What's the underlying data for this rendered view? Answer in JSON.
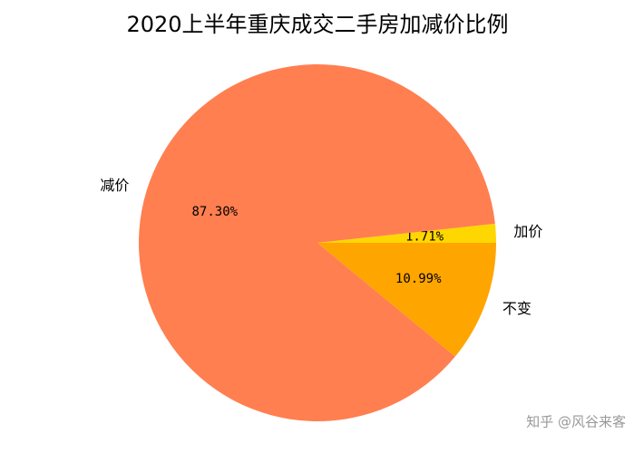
{
  "chart_data": {
    "type": "pie",
    "title": "2020上半年重庆成交二手房加减价比例",
    "categories": [
      "加价",
      "减价",
      "不变"
    ],
    "values": [
      1.71,
      87.3,
      10.99
    ],
    "value_labels": [
      "1.71%",
      "87.30%",
      "10.99%"
    ],
    "colors": [
      "#ffd700",
      "#ff7f50",
      "#ffa500"
    ],
    "watermark": "知乎 @风谷来客"
  }
}
